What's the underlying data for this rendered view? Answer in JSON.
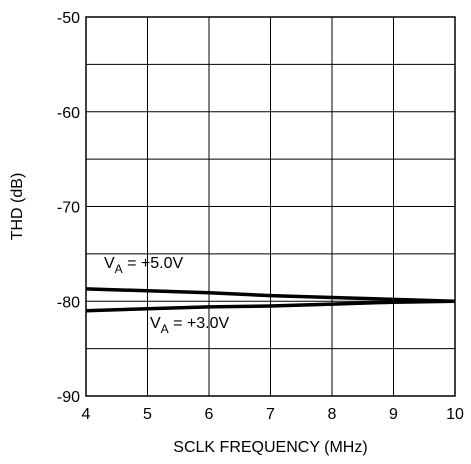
{
  "chart_data": {
    "type": "line",
    "title": "",
    "xlabel": "SCLK FREQUENCY (MHz)",
    "ylabel": "THD (dB)",
    "xlim": [
      4,
      10
    ],
    "ylim": [
      -90,
      -50
    ],
    "x_ticks": [
      "4",
      "5",
      "6",
      "7",
      "8",
      "9",
      "10"
    ],
    "y_ticks": [
      "-50",
      "-60",
      "-70",
      "-80",
      "-90"
    ],
    "grid": true,
    "series": [
      {
        "annotation": {
          "prefix": "V",
          "sub": "A",
          "suffix": " = +5.0V"
        },
        "x": [
          4,
          5,
          6,
          7,
          8,
          9,
          10
        ],
        "y": [
          -78.7,
          -78.9,
          -79.1,
          -79.4,
          -79.6,
          -79.8,
          -80.0
        ]
      },
      {
        "annotation": {
          "prefix": "V",
          "sub": "A",
          "suffix": " = +3.0V"
        },
        "x": [
          4,
          5,
          6,
          7,
          8,
          9,
          10
        ],
        "y": [
          -81.0,
          -80.8,
          -80.6,
          -80.5,
          -80.3,
          -80.1,
          -80.0
        ]
      }
    ]
  }
}
